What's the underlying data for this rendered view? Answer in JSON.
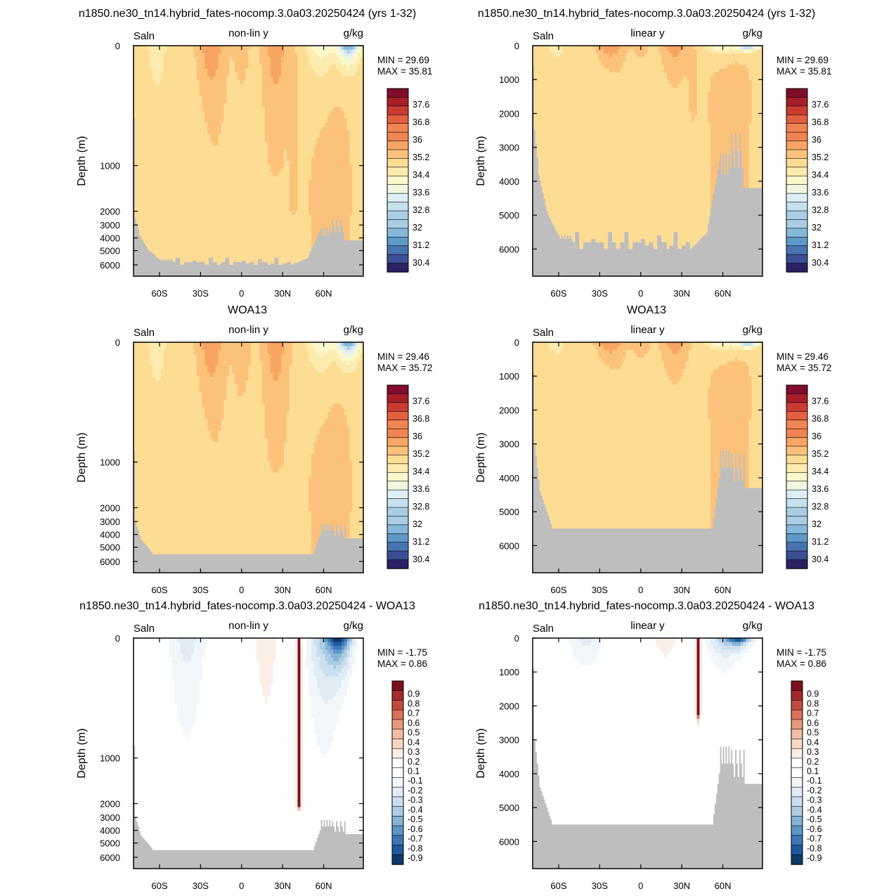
{
  "colors": {
    "land_mask": "#bebebe",
    "full_palette": [
      "#2c2164",
      "#3b4f94",
      "#4774b0",
      "#5e9ac7",
      "#86b8d9",
      "#a8cde4",
      "#c6e1ee",
      "#deeef5",
      "#f0f6e0",
      "#fdf8c9",
      "#fdecad",
      "#fddc94",
      "#fcc27b",
      "#f8a563",
      "#f08452",
      "#e25f42",
      "#ca3b31",
      "#a71e28",
      "#7f0d2b"
    ],
    "diff_palette": [
      "#0f3968",
      "#1e5aa0",
      "#3b78b5",
      "#5c95c6",
      "#86b3d6",
      "#abcce4",
      "#cadeef",
      "#e0ebf5",
      "#f1f6fa",
      "#ffffff",
      "#ffffff",
      "#fbeee6",
      "#f9d8c3",
      "#f3bca1",
      "#e8987a",
      "#d97158",
      "#c44a3d",
      "#a52a2a",
      "#7f0f1e"
    ]
  },
  "chart_data": [
    {
      "id": "model-nonlin",
      "type": "heatmap",
      "title": "n1850.ne30_tn14.hybrid_fates-nocomp.3.0a03.20250424 (yrs 1-32)",
      "left_label": "Saln",
      "center_label": "non-lin y",
      "right_label": "g/kg",
      "ylabel": "Depth (m)",
      "y_scale": "nonlinear",
      "yticks": [
        "0",
        "1000",
        "2000",
        "3000",
        "4000",
        "5000",
        "6000"
      ],
      "ytick_values": [
        0,
        1000,
        2000,
        3000,
        4000,
        5000,
        6000
      ],
      "xticks": [
        "60S",
        "30S",
        "0",
        "30N",
        "60N"
      ],
      "xtick_values": [
        -60,
        -30,
        0,
        30,
        60
      ],
      "xlim": [
        -79,
        89
      ],
      "ylim": [
        0,
        6500
      ],
      "min_text": "MIN =  29.69",
      "max_text": "MAX =  35.81",
      "colorbar_labels": [
        "30.4",
        "31.2",
        "32",
        "32.8",
        "33.6",
        "34.4",
        "35.2",
        "36",
        "36.8",
        "37.6"
      ],
      "field": "model",
      "bathymetry": "model"
    },
    {
      "id": "model-lin",
      "type": "heatmap",
      "title": "n1850.ne30_tn14.hybrid_fates-nocomp.3.0a03.20250424 (yrs 1-32)",
      "left_label": "Saln",
      "center_label": "linear y",
      "right_label": "g/kg",
      "ylabel": "Depth (m)",
      "y_scale": "linear",
      "yticks": [
        "0",
        "1000",
        "2000",
        "3000",
        "4000",
        "5000",
        "6000"
      ],
      "ytick_values": [
        0,
        1000,
        2000,
        3000,
        4000,
        5000,
        6000
      ],
      "xticks": [
        "60S",
        "30S",
        "0",
        "30N",
        "60N"
      ],
      "xtick_values": [
        -60,
        -30,
        0,
        30,
        60
      ],
      "xlim": [
        -79,
        89
      ],
      "ylim": [
        0,
        6800
      ],
      "min_text": "MIN =  29.69",
      "max_text": "MAX =  35.81",
      "colorbar_labels": [
        "30.4",
        "31.2",
        "32",
        "32.8",
        "33.6",
        "34.4",
        "35.2",
        "36",
        "36.8",
        "37.6"
      ],
      "field": "model",
      "bathymetry": "model"
    },
    {
      "id": "obs-nonlin",
      "type": "heatmap",
      "title": "WOA13",
      "left_label": "Saln",
      "center_label": "non-lin y",
      "right_label": "g/kg",
      "ylabel": "Depth (m)",
      "y_scale": "nonlinear",
      "yticks": [
        "0",
        "1000",
        "2000",
        "3000",
        "4000",
        "5000",
        "6000"
      ],
      "ytick_values": [
        0,
        1000,
        2000,
        3000,
        4000,
        5000,
        6000
      ],
      "xticks": [
        "60S",
        "30S",
        "0",
        "30N",
        "60N"
      ],
      "xtick_values": [
        -60,
        -30,
        0,
        30,
        60
      ],
      "xlim": [
        -79,
        89
      ],
      "ylim": [
        0,
        6500
      ],
      "min_text": "MIN =  29.46",
      "max_text": "MAX =  35.72",
      "colorbar_labels": [
        "30.4",
        "31.2",
        "32",
        "32.8",
        "33.6",
        "34.4",
        "35.2",
        "36",
        "36.8",
        "37.6"
      ],
      "field": "obs",
      "bathymetry": "obs"
    },
    {
      "id": "obs-lin",
      "type": "heatmap",
      "title": "WOA13",
      "left_label": "Saln",
      "center_label": "linear y",
      "right_label": "g/kg",
      "ylabel": "Depth (m)",
      "y_scale": "linear",
      "yticks": [
        "0",
        "1000",
        "2000",
        "3000",
        "4000",
        "5000",
        "6000"
      ],
      "ytick_values": [
        0,
        1000,
        2000,
        3000,
        4000,
        5000,
        6000
      ],
      "xticks": [
        "60S",
        "30S",
        "0",
        "30N",
        "60N"
      ],
      "xtick_values": [
        -60,
        -30,
        0,
        30,
        60
      ],
      "xlim": [
        -79,
        89
      ],
      "ylim": [
        0,
        6800
      ],
      "min_text": "MIN =  29.46",
      "max_text": "MAX =  35.72",
      "colorbar_labels": [
        "30.4",
        "31.2",
        "32",
        "32.8",
        "33.6",
        "34.4",
        "35.2",
        "36",
        "36.8",
        "37.6"
      ],
      "field": "obs",
      "bathymetry": "obs"
    },
    {
      "id": "diff-nonlin",
      "type": "heatmap",
      "title": "n1850.ne30_tn14.hybrid_fates-nocomp.3.0a03.20250424 - WOA13",
      "left_label": "Saln",
      "center_label": "non-lin y",
      "right_label": "g/kg",
      "ylabel": "Depth (m)",
      "y_scale": "nonlinear",
      "yticks": [
        "0",
        "1000",
        "2000",
        "3000",
        "4000",
        "5000",
        "6000"
      ],
      "ytick_values": [
        0,
        1000,
        2000,
        3000,
        4000,
        5000,
        6000
      ],
      "xticks": [
        "60S",
        "30S",
        "0",
        "30N",
        "60N"
      ],
      "xtick_values": [
        -60,
        -30,
        0,
        30,
        60
      ],
      "xlim": [
        -79,
        89
      ],
      "ylim": [
        0,
        6500
      ],
      "min_text": "MIN =  -1.75",
      "max_text": "MAX =  0.86",
      "colorbar_labels": [
        "-0.9",
        "-0.8",
        "-0.7",
        "-0.6",
        "-0.5",
        "-0.4",
        "-0.3",
        "-0.2",
        "-0.1",
        "0.1",
        "0.2",
        "0.3",
        "0.4",
        "0.5",
        "0.6",
        "0.7",
        "0.8",
        "0.9"
      ],
      "field": "diff",
      "bathymetry": "obs"
    },
    {
      "id": "diff-lin",
      "type": "heatmap",
      "title": "n1850.ne30_tn14.hybrid_fates-nocomp.3.0a03.20250424 - WOA13",
      "left_label": "Saln",
      "center_label": "linear y",
      "right_label": "g/kg",
      "ylabel": "Depth (m)",
      "y_scale": "linear",
      "yticks": [
        "0",
        "1000",
        "2000",
        "3000",
        "4000",
        "5000",
        "6000"
      ],
      "ytick_values": [
        0,
        1000,
        2000,
        3000,
        4000,
        5000,
        6000
      ],
      "xticks": [
        "60S",
        "30S",
        "0",
        "30N",
        "60N"
      ],
      "xtick_values": [
        -60,
        -30,
        0,
        30,
        60
      ],
      "xlim": [
        -79,
        89
      ],
      "ylim": [
        0,
        6800
      ],
      "min_text": "MIN =  -1.75",
      "max_text": "MAX =  0.86",
      "colorbar_labels": [
        "-0.9",
        "-0.8",
        "-0.7",
        "-0.6",
        "-0.5",
        "-0.4",
        "-0.3",
        "-0.2",
        "-0.1",
        "0.1",
        "0.2",
        "0.3",
        "0.4",
        "0.5",
        "0.6",
        "0.7",
        "0.8",
        "0.9"
      ],
      "field": "diff",
      "bathymetry": "obs"
    }
  ]
}
